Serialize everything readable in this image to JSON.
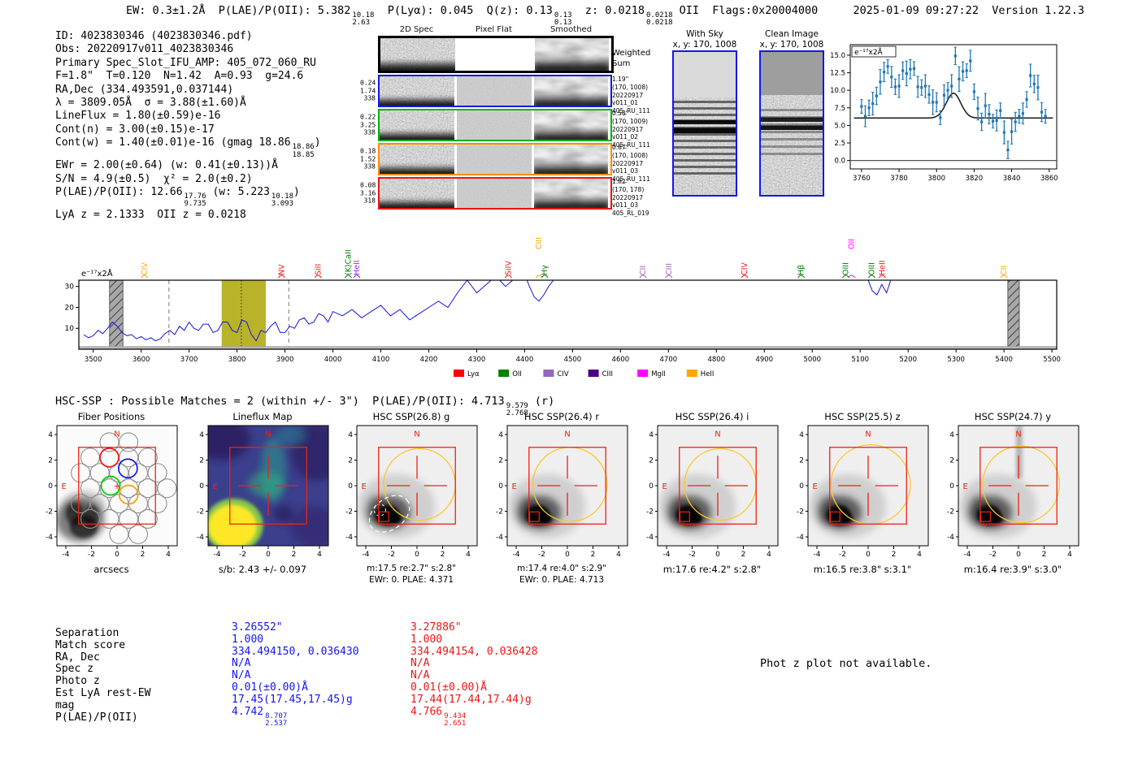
{
  "meta": {
    "datetime": "2025-01-09 09:27:22  Version 1.22.3"
  },
  "header": {
    "parts": [
      {
        "t": "EW: 0.3±1.2Å  P(LAE)/P(OII): 5.382"
      },
      {
        "frac": [
          "10.18",
          "2.63"
        ]
      },
      {
        "t": "  P(Lyα): 0.045  Q(z): 0.13"
      },
      {
        "frac": [
          "0.13",
          "0.13"
        ]
      },
      {
        "t": "  z: 0.0218"
      },
      {
        "frac": [
          "0.0218",
          "0.0218"
        ]
      },
      {
        "t": " OII  Flags:0x20004000"
      }
    ]
  },
  "info": {
    "lines": [
      [
        {
          "t": "ID: 4023830346 (4023830346.pdf)"
        }
      ],
      [
        {
          "t": "Obs: 20220917v011_4023830346"
        }
      ],
      [
        {
          "t": "Primary Spec_Slot_IFU_AMP: 405_072_060_RU"
        }
      ],
      [
        {
          "t": "F=1.8\"  T=0.120  N=1.42  A=0.93  g=24.6"
        }
      ],
      [
        {
          "t": "RA,Dec (334.493591,0.037144)"
        }
      ],
      [
        {
          "t": "λ = 3809.05Å  σ = 3.88(±1.60)Å"
        }
      ],
      [
        {
          "t": "LineFlux = 1.80(±0.59)e-16"
        }
      ],
      [
        {
          "t": "Cont(n) = 3.00(±0.15)e-17"
        }
      ],
      [
        {
          "t": "Cont(w) = 1.40(±0.01)e-16 (gmag 18.86"
        },
        {
          "frac": [
            "18.86",
            "18.85"
          ]
        },
        {
          "t": ")"
        }
      ],
      [
        {
          "t": "EWr = 2.00(±0.64) (w: 0.41(±0.13))Å"
        }
      ],
      [
        {
          "t": "S/N = 4.9(±0.5)  χ² = 2.0(±0.2)"
        }
      ],
      [
        {
          "t": "P(LAE)/P(OII): 12.66"
        },
        {
          "frac": [
            "17.76",
            "9.735"
          ]
        },
        {
          "t": " (w: 5.223"
        },
        {
          "frac": [
            "10.18",
            "3.093"
          ]
        },
        {
          "t": ")"
        }
      ],
      [
        {
          "t": "LyA z = 2.1333  OII z = 0.0218"
        }
      ]
    ]
  },
  "spec2d": {
    "column_titles": [
      "2D Spec",
      "Pixel Flat",
      "Smoothed"
    ],
    "rows": [
      {
        "border": "#000000",
        "thick": true,
        "left_labels": [],
        "right_lines": [
          "Weighted",
          "Sum"
        ],
        "right_big": true,
        "middle": "white"
      },
      {
        "border": "#1515ee",
        "left_labels": [
          "0.24",
          "1.74",
          "338"
        ],
        "right_lines": [
          "1.19\"",
          "(170, 1008)",
          "20220917",
          "v011_01",
          "405_RU_111"
        ],
        "middle": "flat"
      },
      {
        "border": "#00b400",
        "left_labels": [
          "0.22",
          "3.25",
          "338"
        ],
        "right_lines": [
          "0.58\"",
          "(170, 1009)",
          "20220917",
          "v011_02",
          "405_RU_111"
        ],
        "middle": "flat"
      },
      {
        "border": "#ff8c00",
        "left_labels": [
          "0.18",
          "1.52",
          "338"
        ],
        "right_lines": [
          "0.87\"",
          "(170, 1008)",
          "20220917",
          "v011_03",
          "405_RU_111"
        ],
        "middle": "flat"
      },
      {
        "border": "#ee1414",
        "left_labels": [
          "0.08",
          "3.16",
          "318"
        ],
        "right_lines": [
          "1.82\"",
          "(170, 178)",
          "20220917",
          "v011_03",
          "405_RL_019"
        ],
        "middle": "flat"
      }
    ]
  },
  "sky_panels": [
    {
      "id": "withsky",
      "title": "With Sky",
      "subtitle": "x, y: 170, 1008"
    },
    {
      "id": "clean",
      "title": "Clean Image",
      "subtitle": "x, y: 170, 1008"
    }
  ],
  "hsc_line": {
    "parts": [
      {
        "t": "HSC-SSP : Possible Matches = 2 (within +/- 3\")  P(LAE)/P(OII): 4.713"
      },
      {
        "frac": [
          "9.579",
          "2.768"
        ]
      },
      {
        "t": " (r)"
      }
    ]
  },
  "chart_data": [
    {
      "id": "line_fit_inset",
      "type": "scatter",
      "unit_label": "e⁻¹⁷x2Å",
      "x_start": 3760,
      "x_step": 2,
      "values": [
        7.7,
        6.3,
        7.5,
        8.1,
        9.2,
        11.2,
        12.6,
        13.4,
        11.9,
        10.5,
        10.6,
        12.8,
        12.4,
        13.0,
        13.1,
        10.5,
        10.4,
        10.6,
        9.4,
        8.3,
        8.3,
        6.1,
        9.3,
        10.0,
        10.6,
        14.9,
        11.6,
        12.7,
        12.8,
        14.2,
        9.8,
        7.4,
        5.5,
        7.8,
        6.6,
        5.6,
        5.7,
        7.1,
        4.0,
        1.5,
        4.1,
        5.5,
        6.3,
        6.7,
        8.7,
        12.1,
        10.9,
        10.4,
        6.9,
        6.3
      ],
      "yerr": 1.3,
      "fit": {
        "baseline": 6.05,
        "amplitude": 3.55,
        "center": 3809,
        "sigma": 3.88
      },
      "xticks": [
        3760,
        3780,
        3800,
        3820,
        3840,
        3860
      ],
      "yticks": [
        0.0,
        2.5,
        5.0,
        7.5,
        10.0,
        12.5,
        15.0
      ],
      "xlim": [
        3754,
        3864
      ],
      "ylim": [
        -1.2,
        16.5
      ],
      "point_color": "#1f77b4",
      "fit_color": "#222222"
    },
    {
      "id": "full_spectrum",
      "type": "line",
      "unit_label": "e⁻¹⁷x2Å",
      "x": [
        3480,
        3490,
        3500,
        3510,
        3520,
        3530,
        3540,
        3550,
        3560,
        3570,
        3580,
        3590,
        3600,
        3610,
        3620,
        3630,
        3640,
        3650,
        3660,
        3670,
        3680,
        3690,
        3700,
        3710,
        3720,
        3730,
        3740,
        3750,
        3760,
        3770,
        3780,
        3790,
        3800,
        3810,
        3820,
        3830,
        3840,
        3850,
        3860,
        3870,
        3880,
        3890,
        3900,
        3910,
        3920,
        3930,
        3940,
        3950,
        3960,
        3970,
        3980,
        3990,
        4000,
        4020,
        4040,
        4060,
        4080,
        4100,
        4120,
        4140,
        4160,
        4180,
        4200,
        4220,
        4240,
        4260,
        4280,
        4300,
        4320,
        4340,
        4360,
        4380,
        4400,
        4410,
        4420,
        4430,
        4440,
        4450,
        4460,
        4480,
        4500,
        4600,
        4700,
        4800,
        4900,
        5000,
        5100,
        5115,
        5125,
        5135,
        5145,
        5155,
        5165,
        5175,
        5200,
        5300,
        5400,
        5500
      ],
      "y": [
        7,
        5.5,
        6.5,
        9,
        7.5,
        10,
        13,
        11,
        8,
        6.5,
        7,
        5,
        6,
        4.5,
        5.5,
        4,
        5,
        7.5,
        9,
        7,
        11,
        9,
        13,
        10,
        9,
        12,
        12,
        8,
        9,
        13,
        13,
        9,
        8,
        14,
        13,
        7,
        4,
        9,
        8,
        11,
        13,
        8,
        8,
        11,
        10,
        14,
        15,
        12,
        13,
        17,
        16,
        13,
        18,
        16,
        19,
        15,
        18,
        21,
        16,
        19,
        14,
        17,
        20,
        23,
        20,
        27,
        33,
        27,
        31,
        35,
        30,
        34,
        36,
        30,
        25,
        23,
        26,
        30,
        33,
        36,
        36,
        36,
        36,
        36,
        36,
        36,
        36,
        34,
        28,
        26,
        31,
        27,
        34,
        36,
        36,
        36,
        36,
        36
      ],
      "xlim": [
        3470,
        5510
      ],
      "ylim": [
        0,
        33
      ],
      "yticks": [
        10,
        20,
        30
      ],
      "xtick_start": 3500,
      "xtick_step": 100,
      "xtick_end": 5500,
      "bands": [
        {
          "x0": 3534,
          "x1": 3562,
          "type": "hatched"
        },
        {
          "x0": 3768,
          "x1": 3860,
          "type": "olive"
        },
        {
          "x0": 5408,
          "x1": 5432,
          "type": "hatched"
        }
      ],
      "vlines": [
        {
          "x": 3658,
          "style": "dashed",
          "color": "#777777"
        },
        {
          "x": 3809,
          "style": "dotted",
          "color": "#222222"
        },
        {
          "x": 3908,
          "style": "dashed",
          "color": "#777777"
        }
      ],
      "line_labels": [
        {
          "text": "CIV",
          "wl": 3607,
          "color": "#ffa500",
          "tier": 0
        },
        {
          "text": "NV",
          "wl": 3893,
          "color": "#ee1414",
          "tier": 0
        },
        {
          "text": "SiII",
          "wl": 3969,
          "color": "#ee1414",
          "tier": 0
        },
        {
          "text": "(K)CaII",
          "wl": 4032,
          "color": "#008000",
          "tier": 0
        },
        {
          "text": "HeII",
          "wl": 4050,
          "color": "#8a2be2",
          "tier": 0
        },
        {
          "text": "SiIV",
          "wl": 4366,
          "color": "#ee1414",
          "tier": 0
        },
        {
          "text": "CIII",
          "wl": 4430,
          "color": "#ffa500",
          "tier": 1
        },
        {
          "text": "Hγ",
          "wl": 4442,
          "color": "#008000",
          "tier": 0
        },
        {
          "text": "CII",
          "wl": 4647,
          "color": "#9467bd",
          "tier": 0
        },
        {
          "text": "CIII",
          "wl": 4701,
          "color": "#9467bd",
          "tier": 0
        },
        {
          "text": "CIV",
          "wl": 4859,
          "color": "#ee1414",
          "tier": 0
        },
        {
          "text": "Hβ",
          "wl": 4977,
          "color": "#008000",
          "tier": 0
        },
        {
          "text": "OIII",
          "wl": 5070,
          "color": "#008000",
          "tier": 0
        },
        {
          "text": "OII",
          "wl": 5082,
          "color": "#ff00ff",
          "tier": 1
        },
        {
          "text": "OIII",
          "wl": 5124,
          "color": "#008000",
          "tier": 0
        },
        {
          "text": "HeII",
          "wl": 5146,
          "color": "#ee1414",
          "tier": 0
        },
        {
          "text": "CII",
          "wl": 5400,
          "color": "#ffa500",
          "tier": 0
        }
      ],
      "legend": [
        {
          "label": "Lyα",
          "color": "#ff0000"
        },
        {
          "label": "OII",
          "color": "#008000"
        },
        {
          "label": "CIV",
          "color": "#9467bd"
        },
        {
          "label": "CIII",
          "color": "#4b0082"
        },
        {
          "label": "MgII",
          "color": "#ff00ff"
        },
        {
          "label": "HeII",
          "color": "#ffa500"
        }
      ],
      "line_color": "#1414dd",
      "noise_floor_color": "#b9b9b9"
    }
  ],
  "panels": {
    "ticks": [
      -4,
      -2,
      0,
      2,
      4
    ],
    "compass_n": "N",
    "compass_e": "E",
    "accent_red": "#ee2211",
    "gold": "#ffc72c",
    "items": [
      {
        "id": "fiber",
        "title": "Fiber Positions",
        "xlabel": "arcsecs",
        "captions": []
      },
      {
        "id": "lineflux",
        "title": "Lineflux Map",
        "captions": [
          "s/b: 2.43 +/- 0.097"
        ]
      },
      {
        "id": "hsc_g",
        "title": "HSC SSP(26.8) g",
        "captions": [
          "m:17.5 re:2.7\" s:2.8\"",
          "EWr: 0. PLAE: 4.371"
        ],
        "circle_r": 2.8,
        "dashed_ellipse": true
      },
      {
        "id": "hsc_r",
        "title": "HSC SSP(26.4) r",
        "captions": [
          "m:17.4 re:4.0\" s:2.9\"",
          "EWr: 0. PLAE: 4.713"
        ],
        "circle_r": 2.9
      },
      {
        "id": "hsc_i",
        "title": "HSC SSP(26.4) i",
        "captions": [
          "m:17.6 re:4.2\" s:2.8\""
        ],
        "circle_r": 2.8
      },
      {
        "id": "hsc_z",
        "title": "HSC SSP(25.5) z",
        "captions": [
          "m:16.5 re:3.8\" s:3.1\""
        ],
        "circle_r": 3.1
      },
      {
        "id": "hsc_y",
        "title": "HSC SSP(24.7) y",
        "captions": [
          "m:16.4 re:3.9\" s:3.0\""
        ],
        "circle_r": 3.0,
        "streak": true
      }
    ]
  },
  "match_table": {
    "rows": [
      {
        "label": "Separation",
        "blue": [
          {
            "t": "3.26552\""
          }
        ],
        "red": [
          {
            "t": "3.27886\""
          }
        ]
      },
      {
        "label": "Match score",
        "blue": [
          {
            "t": "1.000"
          }
        ],
        "red": [
          {
            "t": "1.000"
          }
        ]
      },
      {
        "label": "RA, Dec",
        "blue": [
          {
            "t": "334.494150, 0.036430"
          }
        ],
        "red": [
          {
            "t": "334.494154, 0.036428"
          }
        ]
      },
      {
        "label": "Spec z",
        "blue": [
          {
            "t": "N/A"
          }
        ],
        "red": [
          {
            "t": "N/A"
          }
        ]
      },
      {
        "label": "Photo z",
        "blue": [
          {
            "t": "N/A"
          }
        ],
        "red": [
          {
            "t": "N/A"
          }
        ]
      },
      {
        "label": "Est LyA rest-EW",
        "blue": [
          {
            "t": "0.01(±0.00)Å"
          }
        ],
        "red": [
          {
            "t": "0.01(±0.00)Å"
          }
        ]
      },
      {
        "label": "mag",
        "blue": [
          {
            "t": "17.45(17.45,17.45)g"
          }
        ],
        "red": [
          {
            "t": "17.44(17.44,17.44)g"
          }
        ]
      },
      {
        "label": "P(LAE)/P(OII)",
        "blue": [
          {
            "t": "4.742"
          },
          {
            "frac": [
              "8.707",
              "2.537"
            ]
          }
        ],
        "red": [
          {
            "t": "4.766"
          },
          {
            "frac": [
              "9.434",
              "2.651"
            ]
          }
        ]
      }
    ]
  },
  "notes": {
    "photz": "Phot z plot not available."
  }
}
